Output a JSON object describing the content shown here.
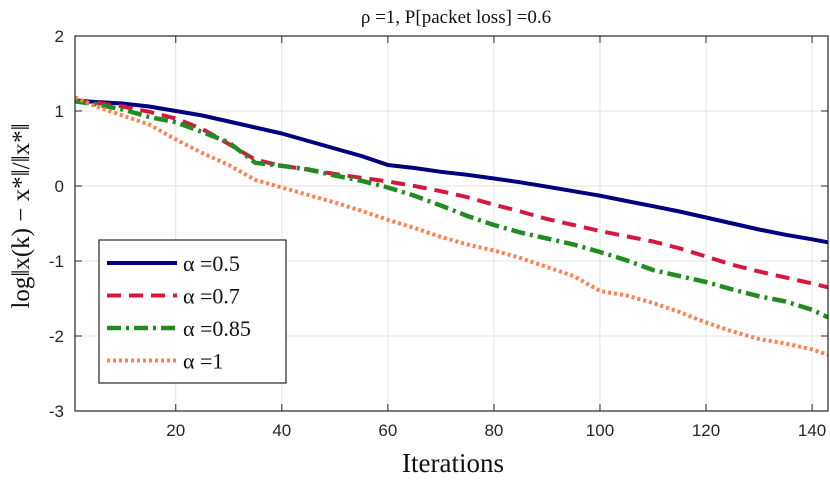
{
  "chart_data": {
    "type": "line",
    "title": "ρ =1, P[packet loss] =0.6",
    "xlabel": "Iterations",
    "ylabel": "log‖x(k) − x*‖/‖x*‖",
    "xlim": [
      1,
      143
    ],
    "ylim": [
      -3,
      2
    ],
    "xticks": [
      20,
      40,
      60,
      80,
      100,
      120,
      140
    ],
    "yticks": [
      -3,
      -2,
      -1,
      0,
      1,
      2
    ],
    "grid": true,
    "legend_position": "bottom-left",
    "series": [
      {
        "name": "α =0.5",
        "color": "#00007f",
        "dash": "solid",
        "x": [
          1,
          5,
          10,
          15,
          20,
          25,
          30,
          35,
          40,
          45,
          50,
          55,
          60,
          65,
          70,
          75,
          80,
          85,
          90,
          95,
          100,
          105,
          110,
          115,
          120,
          125,
          130,
          135,
          140,
          143
        ],
        "y": [
          1.14,
          1.12,
          1.1,
          1.06,
          1.0,
          0.94,
          0.86,
          0.78,
          0.7,
          0.6,
          0.5,
          0.4,
          0.28,
          0.24,
          0.19,
          0.15,
          0.1,
          0.05,
          -0.01,
          -0.07,
          -0.13,
          -0.2,
          -0.27,
          -0.34,
          -0.42,
          -0.5,
          -0.58,
          -0.65,
          -0.71,
          -0.75
        ]
      },
      {
        "name": "α =0.7",
        "color": "#d6183f",
        "dash": "dashed",
        "x": [
          1,
          5,
          10,
          15,
          20,
          25,
          30,
          35,
          40,
          45,
          50,
          55,
          60,
          65,
          70,
          75,
          80,
          85,
          90,
          95,
          100,
          105,
          110,
          115,
          120,
          125,
          130,
          135,
          140,
          143
        ],
        "y": [
          1.13,
          1.11,
          1.06,
          0.99,
          0.9,
          0.76,
          0.56,
          0.35,
          0.27,
          0.22,
          0.16,
          0.11,
          0.06,
          0.0,
          -0.07,
          -0.15,
          -0.25,
          -0.34,
          -0.44,
          -0.52,
          -0.6,
          -0.67,
          -0.74,
          -0.83,
          -0.94,
          -1.05,
          -1.14,
          -1.22,
          -1.3,
          -1.35
        ]
      },
      {
        "name": "α =0.85",
        "color": "#228b22",
        "dash": "dashdot",
        "x": [
          1,
          5,
          10,
          15,
          20,
          25,
          30,
          35,
          40,
          45,
          50,
          55,
          60,
          65,
          70,
          75,
          80,
          85,
          90,
          95,
          100,
          105,
          110,
          115,
          120,
          125,
          130,
          135,
          140,
          143
        ],
        "y": [
          1.13,
          1.09,
          1.02,
          0.92,
          0.85,
          0.72,
          0.58,
          0.31,
          0.27,
          0.22,
          0.14,
          0.07,
          -0.02,
          -0.13,
          -0.26,
          -0.4,
          -0.52,
          -0.62,
          -0.7,
          -0.78,
          -0.88,
          -0.99,
          -1.12,
          -1.2,
          -1.28,
          -1.38,
          -1.47,
          -1.54,
          -1.65,
          -1.75
        ]
      },
      {
        "name": "α =1",
        "color": "#ff7f50",
        "dash": "dotted",
        "x": [
          1,
          5,
          10,
          15,
          20,
          25,
          30,
          35,
          40,
          45,
          50,
          55,
          60,
          65,
          70,
          75,
          80,
          85,
          90,
          95,
          100,
          105,
          110,
          115,
          120,
          125,
          130,
          135,
          140,
          143
        ],
        "y": [
          1.18,
          1.06,
          0.94,
          0.82,
          0.62,
          0.44,
          0.28,
          0.08,
          -0.02,
          -0.12,
          -0.22,
          -0.33,
          -0.45,
          -0.56,
          -0.68,
          -0.78,
          -0.86,
          -0.96,
          -1.08,
          -1.2,
          -1.4,
          -1.46,
          -1.56,
          -1.68,
          -1.82,
          -1.94,
          -2.04,
          -2.1,
          -2.18,
          -2.25
        ]
      }
    ]
  }
}
